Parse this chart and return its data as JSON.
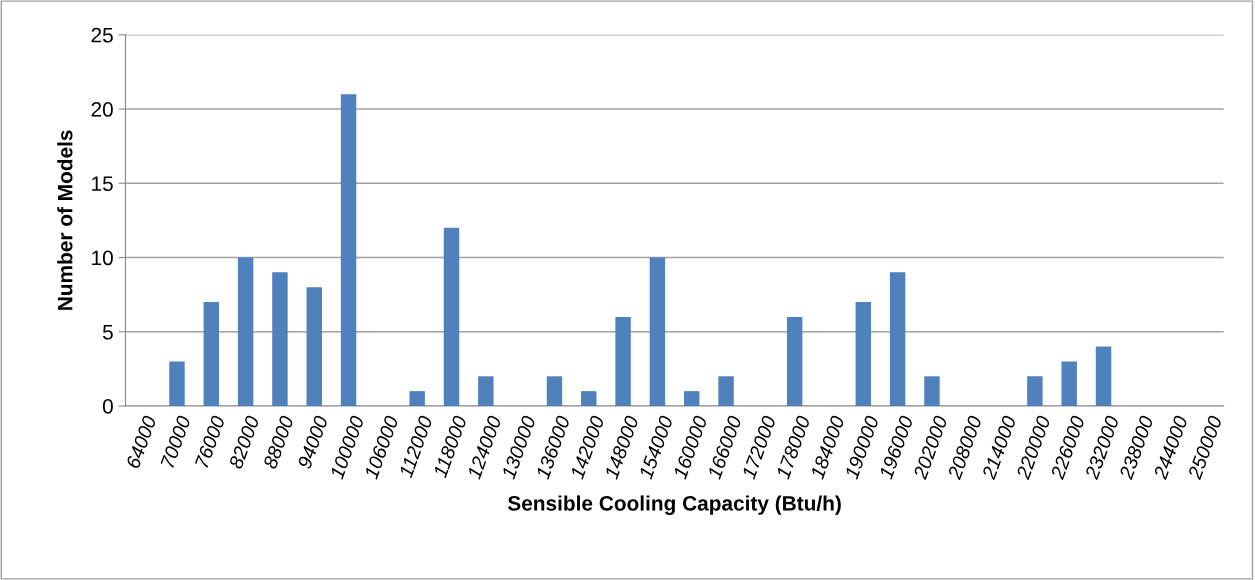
{
  "chart_data": {
    "type": "bar",
    "xlabel": "Sensible Cooling Capacity (Btu/h)",
    "ylabel": "Number of Models",
    "categories": [
      "64000",
      "70000",
      "76000",
      "82000",
      "88000",
      "94000",
      "100000",
      "106000",
      "112000",
      "118000",
      "124000",
      "130000",
      "136000",
      "142000",
      "148000",
      "154000",
      "160000",
      "166000",
      "172000",
      "178000",
      "184000",
      "190000",
      "196000",
      "202000",
      "208000",
      "214000",
      "220000",
      "226000",
      "232000",
      "238000",
      "244000",
      "250000"
    ],
    "values": [
      0,
      3,
      7,
      10,
      9,
      8,
      21,
      0,
      1,
      12,
      2,
      0,
      2,
      1,
      6,
      10,
      1,
      2,
      0,
      6,
      0,
      7,
      9,
      2,
      0,
      0,
      2,
      3,
      4,
      0,
      0,
      0
    ],
    "color": "#4f81bd",
    "ylim": [
      0,
      25
    ],
    "yticks": [
      0,
      5,
      10,
      15,
      20,
      25
    ],
    "grid": "y",
    "legend": false
  }
}
